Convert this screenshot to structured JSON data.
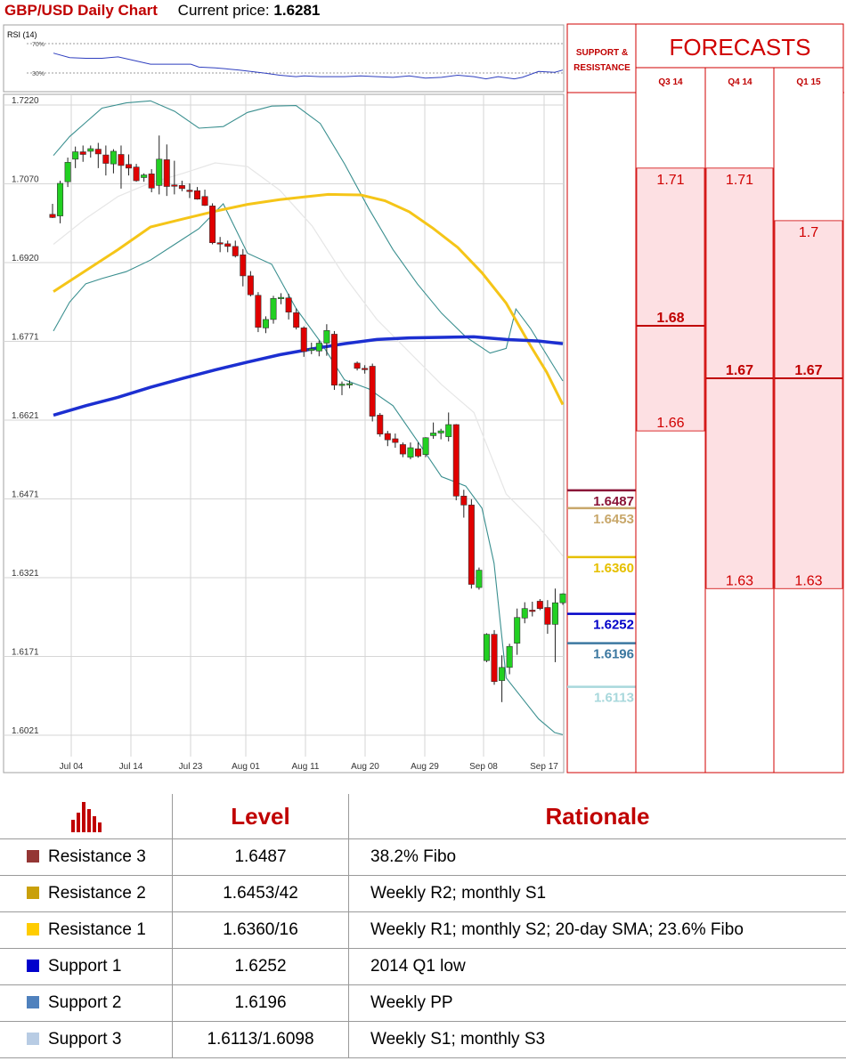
{
  "header": {
    "title": "GBP/USD Daily Chart",
    "price_label": "Current price:",
    "price_value": "1.6281"
  },
  "rsi": {
    "label": "RSI (14)",
    "upper": "70%",
    "lower": "30%"
  },
  "chart_data": {
    "type": "candlestick",
    "title": "GBP/USD Daily Chart",
    "y_ticks": [
      "1.7220",
      "1.7070",
      "1.6920",
      "1.6771",
      "1.6621",
      "1.6471",
      "1.6321",
      "1.6171",
      "1.6021"
    ],
    "x_ticks": [
      "Jul 04",
      "Jul 14",
      "Jul 23",
      "Aug 01",
      "Aug 11",
      "Aug 20",
      "Aug 29",
      "Sep 08",
      "Sep 17"
    ],
    "ylim": [
      1.6021,
      1.722
    ],
    "grid": true,
    "candles": [
      [
        1.7012,
        1.7032,
        1.7005,
        1.7006
      ],
      [
        1.7009,
        1.7076,
        1.6995,
        1.7071
      ],
      [
        1.7074,
        1.712,
        1.7064,
        1.7111
      ],
      [
        1.7117,
        1.7141,
        1.71,
        1.7131
      ],
      [
        1.7131,
        1.7143,
        1.7112,
        1.7126
      ],
      [
        1.7132,
        1.7143,
        1.712,
        1.7137
      ],
      [
        1.7136,
        1.7148,
        1.71,
        1.7127
      ],
      [
        1.7125,
        1.7143,
        1.7086,
        1.7109
      ],
      [
        1.7108,
        1.7136,
        1.709,
        1.7132
      ],
      [
        1.7126,
        1.7143,
        1.7061,
        1.7105
      ],
      [
        1.7107,
        1.7126,
        1.7086,
        1.71
      ],
      [
        1.7102,
        1.7108,
        1.7074,
        1.7076
      ],
      [
        1.7082,
        1.709,
        1.7074,
        1.7087
      ],
      [
        1.7089,
        1.7098,
        1.7054,
        1.7062
      ],
      [
        1.7067,
        1.7162,
        1.705,
        1.7117
      ],
      [
        1.7116,
        1.7145,
        1.7047,
        1.7065
      ],
      [
        1.7068,
        1.7114,
        1.705,
        1.7066
      ],
      [
        1.7067,
        1.7076,
        1.7056,
        1.7061
      ],
      [
        1.7058,
        1.7071,
        1.7043,
        1.7057
      ],
      [
        1.7057,
        1.7064,
        1.704,
        1.7041
      ],
      [
        1.7046,
        1.7059,
        1.7028,
        1.7029
      ],
      [
        1.7028,
        1.7033,
        1.6955,
        1.6958
      ],
      [
        1.6958,
        1.6969,
        1.694,
        1.6957
      ],
      [
        1.6956,
        1.6962,
        1.694,
        1.6951
      ],
      [
        1.6951,
        1.6962,
        1.693,
        1.6933
      ],
      [
        1.6935,
        1.6946,
        1.6875,
        1.6895
      ],
      [
        1.6895,
        1.6904,
        1.6856,
        1.6859
      ],
      [
        1.6858,
        1.6864,
        1.6788,
        1.6797
      ],
      [
        1.6796,
        1.6818,
        1.6786,
        1.6812
      ],
      [
        1.6812,
        1.6857,
        1.6804,
        1.6852
      ],
      [
        1.6854,
        1.6862,
        1.6841,
        1.6854
      ],
      [
        1.6853,
        1.6861,
        1.6812,
        1.6826
      ],
      [
        1.6825,
        1.6833,
        1.6793,
        1.6797
      ],
      [
        1.6796,
        1.6799,
        1.6741,
        1.6751
      ],
      [
        1.6753,
        1.6768,
        1.6746,
        1.6756
      ],
      [
        1.6752,
        1.6772,
        1.6742,
        1.6767
      ],
      [
        1.6767,
        1.6803,
        1.6743,
        1.6791
      ],
      [
        1.6784,
        1.679,
        1.6678,
        1.6687
      ],
      [
        1.6689,
        1.6694,
        1.6668,
        1.6689
      ],
      [
        1.6689,
        1.6696,
        1.6681,
        1.669
      ],
      [
        1.6729,
        1.6732,
        1.6715,
        1.6719
      ],
      [
        1.6719,
        1.6725,
        1.6709,
        1.6718
      ],
      [
        1.6723,
        1.6728,
        1.6618,
        1.6628
      ],
      [
        1.663,
        1.6634,
        1.6589,
        1.6594
      ],
      [
        1.6595,
        1.66,
        1.6571,
        1.6583
      ],
      [
        1.6585,
        1.6595,
        1.6568,
        1.6578
      ],
      [
        1.6574,
        1.6578,
        1.655,
        1.6556
      ],
      [
        1.655,
        1.6578,
        1.6546,
        1.6568
      ],
      [
        1.6566,
        1.6578,
        1.6549,
        1.6552
      ],
      [
        1.6555,
        1.6588,
        1.655,
        1.6587
      ],
      [
        1.6591,
        1.6616,
        1.6585,
        1.6596
      ],
      [
        1.6596,
        1.6604,
        1.6584,
        1.66
      ],
      [
        1.6589,
        1.6635,
        1.658,
        1.6612
      ],
      [
        1.6612,
        1.6613,
        1.6468,
        1.6476
      ],
      [
        1.6476,
        1.6488,
        1.6435,
        1.6459
      ],
      [
        1.6459,
        1.647,
        1.63,
        1.6308
      ],
      [
        1.6302,
        1.634,
        1.6298,
        1.6335
      ],
      [
        1.6163,
        1.6215,
        1.616,
        1.6213
      ],
      [
        1.6213,
        1.6221,
        1.6117,
        1.6123
      ],
      [
        1.6125,
        1.6173,
        1.6084,
        1.615
      ],
      [
        1.615,
        1.6195,
        1.6137,
        1.619
      ],
      [
        1.6196,
        1.6262,
        1.6174,
        1.6245
      ],
      [
        1.6244,
        1.6274,
        1.6234,
        1.6262
      ],
      [
        1.6259,
        1.6275,
        1.6247,
        1.6257
      ],
      [
        1.6276,
        1.628,
        1.6259,
        1.6262
      ],
      [
        1.6264,
        1.6278,
        1.6214,
        1.6232
      ],
      [
        1.6232,
        1.63,
        1.616,
        1.6273
      ],
      [
        1.6273,
        1.6291,
        1.6269,
        1.629
      ]
    ],
    "moving_average_1": [
      [
        0,
        1.6865
      ],
      [
        40,
        1.6905
      ],
      [
        80,
        1.6945
      ],
      [
        120,
        1.6988
      ],
      [
        160,
        1.7003
      ],
      [
        200,
        1.7018
      ],
      [
        240,
        1.7031
      ],
      [
        280,
        1.704
      ],
      [
        310,
        1.7045
      ],
      [
        340,
        1.705
      ],
      [
        380,
        1.7049
      ],
      [
        410,
        1.7038
      ],
      [
        440,
        1.7017
      ],
      [
        470,
        1.6985
      ],
      [
        500,
        1.6949
      ],
      [
        530,
        1.6901
      ],
      [
        560,
        1.6843
      ],
      [
        590,
        1.6762
      ],
      [
        610,
        1.6712
      ],
      [
        630,
        1.665
      ]
    ],
    "moving_average_2": [
      [
        0,
        1.663
      ],
      [
        40,
        1.6648
      ],
      [
        80,
        1.6664
      ],
      [
        120,
        1.6683
      ],
      [
        160,
        1.67
      ],
      [
        200,
        1.6716
      ],
      [
        240,
        1.6731
      ],
      [
        280,
        1.6745
      ],
      [
        320,
        1.6756
      ],
      [
        360,
        1.6766
      ],
      [
        400,
        1.6774
      ],
      [
        440,
        1.6777
      ],
      [
        480,
        1.6778
      ],
      [
        520,
        1.6779
      ],
      [
        560,
        1.6774
      ],
      [
        600,
        1.6771
      ],
      [
        630,
        1.6766
      ]
    ],
    "bollinger_upper": [
      [
        0,
        1.7124
      ],
      [
        20,
        1.716
      ],
      [
        40,
        1.7187
      ],
      [
        60,
        1.7214
      ],
      [
        90,
        1.7224
      ],
      [
        120,
        1.7228
      ],
      [
        150,
        1.7208
      ],
      [
        180,
        1.7176
      ],
      [
        210,
        1.7179
      ],
      [
        240,
        1.7206
      ],
      [
        270,
        1.7218
      ],
      [
        300,
        1.7219
      ],
      [
        330,
        1.7185
      ],
      [
        360,
        1.7108
      ],
      [
        390,
        1.7023
      ],
      [
        420,
        1.6945
      ],
      [
        450,
        1.688
      ],
      [
        480,
        1.6824
      ],
      [
        510,
        1.6779
      ],
      [
        540,
        1.6748
      ],
      [
        560,
        1.6757
      ],
      [
        572,
        1.6832
      ],
      [
        590,
        1.6795
      ],
      [
        610,
        1.6745
      ],
      [
        630,
        1.6695
      ]
    ],
    "bollinger_lower": [
      [
        0,
        1.679
      ],
      [
        20,
        1.6845
      ],
      [
        40,
        1.688
      ],
      [
        60,
        1.689
      ],
      [
        90,
        1.6903
      ],
      [
        120,
        1.6925
      ],
      [
        150,
        1.6955
      ],
      [
        180,
        1.6985
      ],
      [
        210,
        1.7032
      ],
      [
        240,
        1.6938
      ],
      [
        270,
        1.6917
      ],
      [
        300,
        1.6833
      ],
      [
        330,
        1.677
      ],
      [
        360,
        1.6697
      ],
      [
        390,
        1.668
      ],
      [
        420,
        1.6648
      ],
      [
        450,
        1.6581
      ],
      [
        480,
        1.6513
      ],
      [
        510,
        1.6495
      ],
      [
        530,
        1.6453
      ],
      [
        545,
        1.6348
      ],
      [
        560,
        1.613
      ],
      [
        580,
        1.6091
      ],
      [
        600,
        1.6052
      ],
      [
        620,
        1.6026
      ],
      [
        630,
        1.6022
      ]
    ],
    "middle_band": [
      [
        0,
        1.6955
      ],
      [
        40,
        1.7004
      ],
      [
        80,
        1.7046
      ],
      [
        120,
        1.7072
      ],
      [
        160,
        1.709
      ],
      [
        200,
        1.711
      ],
      [
        240,
        1.7103
      ],
      [
        280,
        1.7058
      ],
      [
        320,
        1.699
      ],
      [
        360,
        1.6894
      ],
      [
        400,
        1.6812
      ],
      [
        440,
        1.675
      ],
      [
        480,
        1.6688
      ],
      [
        520,
        1.6635
      ],
      [
        560,
        1.648
      ],
      [
        600,
        1.6418
      ],
      [
        630,
        1.6362
      ]
    ],
    "rsi_values": [
      [
        0,
        57
      ],
      [
        20,
        51
      ],
      [
        40,
        50
      ],
      [
        60,
        50
      ],
      [
        80,
        52
      ],
      [
        100,
        47
      ],
      [
        120,
        42
      ],
      [
        150,
        42
      ],
      [
        170,
        42
      ],
      [
        180,
        38
      ],
      [
        200,
        37
      ],
      [
        230,
        34
      ],
      [
        260,
        30
      ],
      [
        280,
        27
      ],
      [
        300,
        25
      ],
      [
        310,
        26
      ],
      [
        330,
        25
      ],
      [
        360,
        25
      ],
      [
        380,
        26
      ],
      [
        400,
        25
      ],
      [
        420,
        24
      ],
      [
        440,
        26
      ],
      [
        460,
        23
      ],
      [
        480,
        24
      ],
      [
        500,
        27
      ],
      [
        520,
        25
      ],
      [
        535,
        22
      ],
      [
        550,
        25
      ],
      [
        570,
        22
      ],
      [
        580,
        24
      ],
      [
        600,
        32
      ],
      [
        620,
        31
      ],
      [
        630,
        34
      ]
    ]
  },
  "levels": [
    {
      "value": "1.6487",
      "price": 1.6487,
      "color": "#8a1438"
    },
    {
      "value": "1.6453",
      "price": 1.6453,
      "color": "#c8a76a"
    },
    {
      "value": "1.6360",
      "price": 1.636,
      "color": "#e6c000"
    },
    {
      "value": "1.6252",
      "price": 1.6252,
      "color": "#0000c8"
    },
    {
      "value": "1.6196",
      "price": 1.6196,
      "color": "#3c78a0"
    },
    {
      "value": "1.6113",
      "price": 1.6113,
      "color": "#a8d8dc"
    }
  ],
  "forecasts": {
    "sr_label_1": "SUPPORT &",
    "sr_label_2": "RESISTANCE",
    "title": "FORECASTS",
    "quarters": [
      "Q3 14",
      "Q4 14",
      "Q1 15"
    ],
    "columns": [
      {
        "high": "1.71",
        "avg": "1.68",
        "low": "1.66",
        "high_v": 1.71,
        "avg_v": 1.68,
        "low_v": 1.66
      },
      {
        "high": "1.71",
        "avg": "1.67",
        "low": "1.63",
        "high_v": 1.71,
        "avg_v": 1.67,
        "low_v": 1.63
      },
      {
        "high": "1.7",
        "avg": "1.67",
        "low": "1.63",
        "high_v": 1.7,
        "avg_v": 1.67,
        "low_v": 1.63
      }
    ]
  },
  "table": {
    "headers": {
      "level": "Level",
      "rationale": "Rationale"
    },
    "rows": [
      {
        "name": "Resistance 3",
        "level": "1.6487",
        "rationale": "38.2% Fibo",
        "color": "#943634"
      },
      {
        "name": "Resistance 2",
        "level": "1.6453/42",
        "rationale": "Weekly R2; monthly S1",
        "color": "#c9a00a"
      },
      {
        "name": "Resistance 1",
        "level": "1.6360/16",
        "rationale": "Weekly R1; monthly S2; 20-day SMA; 23.6% Fibo",
        "color": "#ffcc00"
      },
      {
        "name": "Support 1",
        "level": "1.6252",
        "rationale": "2014 Q1 low",
        "color": "#0000cc"
      },
      {
        "name": "Support 2",
        "level": "1.6196",
        "rationale": "Weekly PP",
        "color": "#4f81bd"
      },
      {
        "name": "Support 3",
        "level": "1.6113/1.6098",
        "rationale": "Weekly S1; monthly S3",
        "color": "#b8cce4"
      }
    ]
  }
}
